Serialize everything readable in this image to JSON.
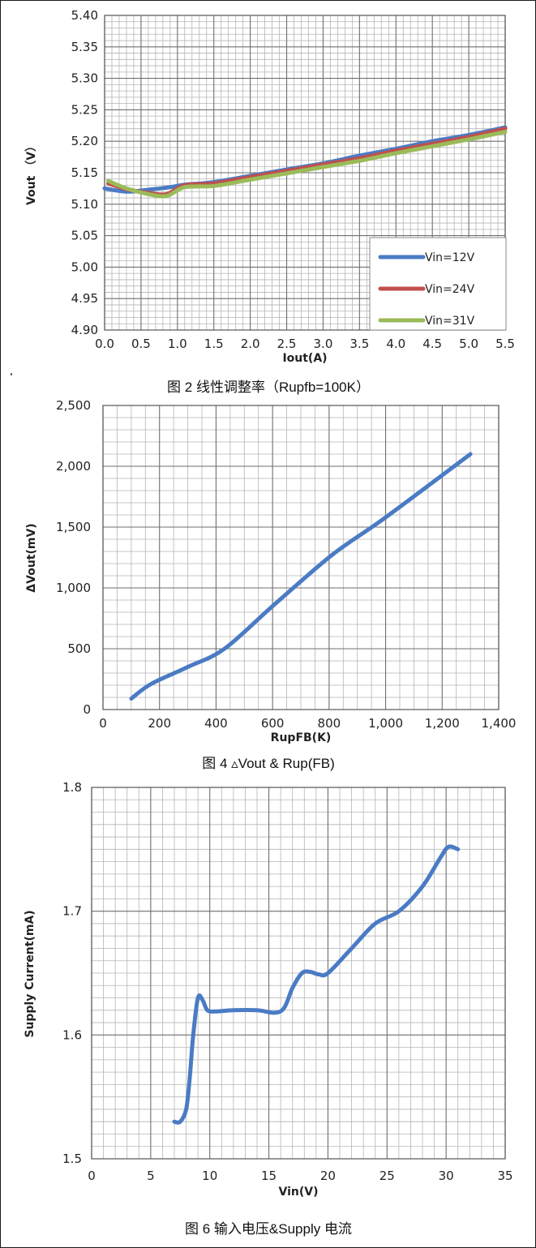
{
  "figures": [
    {
      "caption": "图 2 线性调整率（Rupfb=100K）",
      "chart_data": {
        "type": "line",
        "xlabel": "Iout(A)",
        "ylabel": "Vout （V）",
        "xlim": [
          0,
          5.5
        ],
        "ylim": [
          4.9,
          5.4
        ],
        "x_ticks": [
          "0.0",
          "0.5",
          "1.0",
          "1.5",
          "2.0",
          "2.5",
          "3.0",
          "3.5",
          "4.0",
          "4.5",
          "5.0",
          "5.5"
        ],
        "y_ticks": [
          "5.40",
          "5.35",
          "5.30",
          "5.25",
          "5.20",
          "5.15",
          "5.10",
          "5.05",
          "5.00",
          "4.95",
          "4.90"
        ],
        "grid": "major and minor",
        "legend_position": "bottom-right",
        "series": [
          {
            "name": "Vin=12V",
            "color": "#4a7bc4",
            "x": [
              0.0,
              0.3,
              0.6,
              0.9,
              1.1,
              1.5,
              2.0,
              2.5,
              3.0,
              3.5,
              4.0,
              4.5,
              5.0,
              5.5
            ],
            "y": [
              5.125,
              5.12,
              5.123,
              5.127,
              5.131,
              5.135,
              5.145,
              5.155,
              5.165,
              5.177,
              5.188,
              5.2,
              5.21,
              5.222
            ]
          },
          {
            "name": "Vin=24V",
            "color": "#c0504d",
            "x": [
              0.05,
              0.3,
              0.6,
              0.85,
              1.1,
              1.5,
              2.0,
              2.5,
              3.0,
              3.5,
              4.0,
              4.5,
              5.0,
              5.5
            ],
            "y": [
              5.133,
              5.124,
              5.118,
              5.116,
              5.13,
              5.133,
              5.143,
              5.153,
              5.163,
              5.173,
              5.185,
              5.196,
              5.207,
              5.22
            ]
          },
          {
            "name": "Vin=31V",
            "color": "#9bbb59",
            "x": [
              0.05,
              0.3,
              0.6,
              0.85,
              1.1,
              1.5,
              2.0,
              2.5,
              3.0,
              3.5,
              4.0,
              4.5,
              5.0,
              5.5
            ],
            "y": [
              5.137,
              5.125,
              5.116,
              5.113,
              5.127,
              5.129,
              5.139,
              5.149,
              5.159,
              5.169,
              5.181,
              5.192,
              5.203,
              5.215
            ]
          }
        ]
      }
    },
    {
      "caption": "图 4 ▵Vout & Rup(FB)",
      "chart_data": {
        "type": "line",
        "xlabel": "RupFB(K)",
        "ylabel": "ΔVout(mV)",
        "xlim": [
          0,
          1400
        ],
        "ylim": [
          0,
          2500
        ],
        "x_ticks": [
          "0",
          "200",
          "400",
          "600",
          "800",
          "1,000",
          "1,200",
          "1,400"
        ],
        "y_ticks": [
          "2,500",
          "2,000",
          "1,500",
          "1,000",
          "500",
          "0"
        ],
        "grid": "major and minor",
        "series": [
          {
            "color": "#4a7bc4",
            "x": [
              100,
              170,
              300,
              430,
              600,
              810,
              1000,
              1300
            ],
            "y": [
              90,
              210,
              350,
              500,
              850,
              1270,
              1580,
              2100
            ]
          }
        ]
      }
    },
    {
      "caption": "图 6 输入电压&Supply 电流",
      "chart_data": {
        "type": "line",
        "xlabel": "Vin(V)",
        "ylabel": "Supply Current(mA)",
        "xlim": [
          0,
          35
        ],
        "ylim": [
          1.5,
          1.8
        ],
        "x_ticks": [
          "0",
          "5",
          "10",
          "15",
          "20",
          "25",
          "30",
          "35"
        ],
        "y_ticks": [
          "1.8",
          "1.7",
          "1.6",
          "1.5"
        ],
        "grid": "major and minor",
        "series": [
          {
            "color": "#4a7bc4",
            "x": [
              7,
              7.5,
              8,
              8.3,
              8.6,
              9.0,
              9.4,
              9.8,
              10.5,
              12,
              14,
              15.5,
              16.3,
              17,
              17.8,
              18.5,
              19.2,
              20,
              22,
              24,
              26,
              28,
              29.5,
              30.2,
              31
            ],
            "y": [
              1.53,
              1.53,
              1.54,
              1.565,
              1.6,
              1.63,
              1.628,
              1.62,
              1.619,
              1.62,
              1.62,
              1.618,
              1.622,
              1.638,
              1.65,
              1.651,
              1.649,
              1.65,
              1.67,
              1.69,
              1.7,
              1.72,
              1.743,
              1.752,
              1.75
            ]
          }
        ]
      }
    }
  ]
}
